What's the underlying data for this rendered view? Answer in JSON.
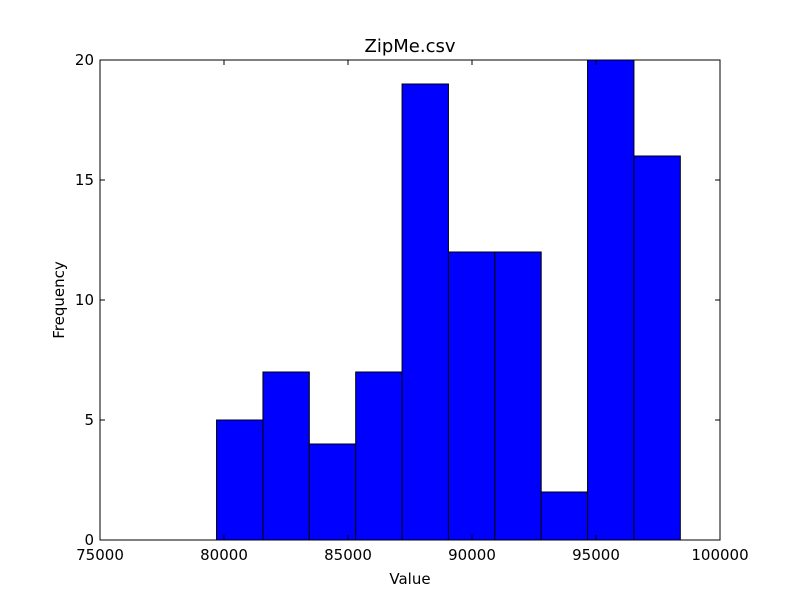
{
  "chart_data": {
    "type": "bar",
    "title": "ZipMe.csv",
    "xlabel": "Value",
    "ylabel": "Frequency",
    "xlim": [
      75000,
      100000
    ],
    "ylim": [
      0,
      20
    ],
    "xticks": [
      75000,
      80000,
      85000,
      90000,
      95000,
      100000
    ],
    "yticks": [
      0,
      5,
      10,
      15,
      20
    ],
    "bin_edges": [
      79700,
      81570,
      83440,
      85310,
      87180,
      89050,
      90920,
      92790,
      94660,
      96530,
      98400
    ],
    "values": [
      5,
      7,
      4,
      7,
      19,
      12,
      12,
      2,
      20,
      16
    ],
    "bar_color": "#0000ff",
    "edge_color": "#000000",
    "grid": false
  }
}
